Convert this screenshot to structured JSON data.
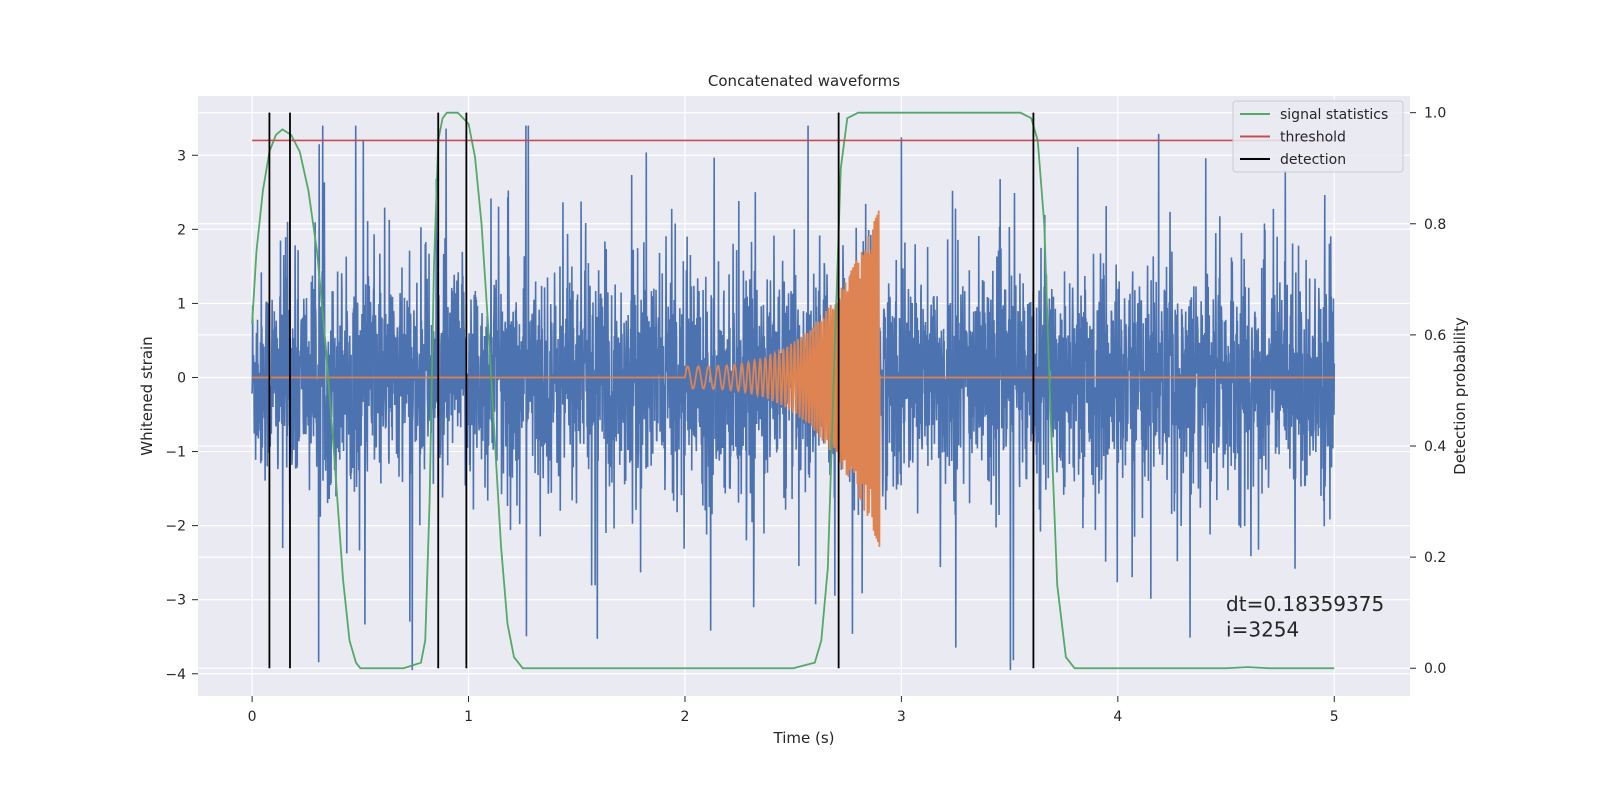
{
  "chart_data": {
    "type": "line",
    "title": "Concatenated waveforms",
    "xlabel": "Time (s)",
    "ylabel": "Whitened strain",
    "ylabel_right": "Detection probability",
    "xlim": [
      -0.25,
      5.35
    ],
    "ylim": [
      -4.3,
      3.8
    ],
    "ylim_right": [
      -0.05,
      1.03
    ],
    "x_ticks": [
      0,
      1,
      2,
      3,
      4,
      5
    ],
    "y_ticks": [
      -4,
      -3,
      -2,
      -1,
      0,
      1,
      2,
      3
    ],
    "y_ticks_right": [
      0.0,
      0.2,
      0.4,
      0.6,
      0.8,
      1.0
    ],
    "grid": true,
    "legend_position": "top-right",
    "legend": [
      {
        "label": "signal statistics",
        "color": "#55a868"
      },
      {
        "label": "threshold",
        "color": "#c44e52"
      },
      {
        "label": "detection",
        "color": "#000000"
      }
    ],
    "series": [
      {
        "label_ref": "noise strain",
        "color": "#4c72b0",
        "x_range": [
          0,
          5
        ],
        "envelope": {
          "typical_abs": 1.5,
          "max_peak": 3.4,
          "min_peak": -3.95
        }
      },
      {
        "label_ref": "injected signal",
        "color": "#dd8452",
        "x_range": [
          0,
          5
        ],
        "chirp": {
          "start": 2.0,
          "end": 2.9,
          "peak_amplitude": 2.3
        }
      },
      {
        "name": "signal statistics",
        "color": "#55a868",
        "axis": "right",
        "x": [
          0,
          0.02,
          0.05,
          0.08,
          0.11,
          0.14,
          0.18,
          0.22,
          0.26,
          0.3,
          0.34,
          0.38,
          0.42,
          0.45,
          0.48,
          0.5,
          0.6,
          0.7,
          0.78,
          0.8,
          0.82,
          0.84,
          0.86,
          0.88,
          0.9,
          0.95,
          1.0,
          1.03,
          1.06,
          1.09,
          1.12,
          1.15,
          1.18,
          1.21,
          1.25,
          1.5,
          2.0,
          2.5,
          2.6,
          2.63,
          2.66,
          2.69,
          2.72,
          2.75,
          2.8,
          2.9,
          3.0,
          3.3,
          3.55,
          3.6,
          3.63,
          3.66,
          3.69,
          3.72,
          3.76,
          3.8,
          4.0,
          4.5,
          4.6,
          4.7,
          5.0
        ],
        "values": [
          0.62,
          0.75,
          0.86,
          0.93,
          0.96,
          0.97,
          0.96,
          0.93,
          0.86,
          0.75,
          0.58,
          0.38,
          0.16,
          0.05,
          0.01,
          0.0,
          0.0,
          0.0,
          0.01,
          0.05,
          0.3,
          0.72,
          0.95,
          0.99,
          1.0,
          1.0,
          0.98,
          0.92,
          0.8,
          0.62,
          0.42,
          0.22,
          0.08,
          0.02,
          0.0,
          0.0,
          0.0,
          0.0,
          0.01,
          0.05,
          0.18,
          0.55,
          0.9,
          0.99,
          1.0,
          1.0,
          1.0,
          1.0,
          1.0,
          0.99,
          0.95,
          0.8,
          0.45,
          0.15,
          0.02,
          0.0,
          0.0,
          0.0,
          0.002,
          0.0,
          0.0
        ]
      },
      {
        "name": "threshold",
        "color": "#c44e52",
        "axis": "right",
        "x": [
          0,
          5
        ],
        "values": [
          0.95,
          0.95
        ]
      }
    ],
    "detections": [
      0.08,
      0.175,
      0.86,
      0.99,
      2.71,
      3.61
    ],
    "annotations": [
      {
        "text": "dt=0.18359375",
        "x": 4.5,
        "y": -3.15
      },
      {
        "text": " i=3254",
        "x": 4.5,
        "y": -3.5
      }
    ]
  }
}
